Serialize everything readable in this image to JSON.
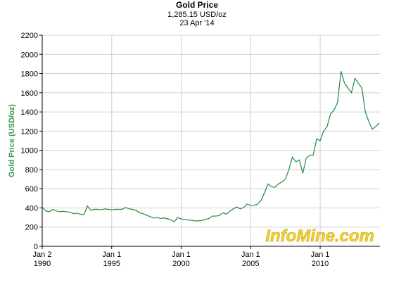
{
  "chart_data": {
    "type": "line",
    "title": "Gold Price",
    "subtitle": "1,285.15 USD/oz",
    "date": "23 Apr '14",
    "y_label": "Gold Price (USD/oz)",
    "watermark": "InfoMine.com",
    "x": [
      1990,
      1990.25,
      1990.5,
      1990.75,
      1991,
      1991.25,
      1991.5,
      1991.75,
      1992,
      1992.25,
      1992.5,
      1992.75,
      1993,
      1993.25,
      1993.5,
      1993.75,
      1994,
      1994.25,
      1994.5,
      1994.75,
      1995,
      1995.25,
      1995.5,
      1995.75,
      1996,
      1996.25,
      1996.5,
      1996.75,
      1997,
      1997.25,
      1997.5,
      1997.75,
      1998,
      1998.25,
      1998.5,
      1998.75,
      1999,
      1999.25,
      1999.5,
      1999.75,
      2000,
      2000.25,
      2000.5,
      2000.75,
      2001,
      2001.25,
      2001.5,
      2001.75,
      2002,
      2002.25,
      2002.5,
      2002.75,
      2003,
      2003.25,
      2003.5,
      2003.75,
      2004,
      2004.25,
      2004.5,
      2004.75,
      2005,
      2005.25,
      2005.5,
      2005.75,
      2006,
      2006.25,
      2006.5,
      2006.75,
      2007,
      2007.25,
      2007.5,
      2007.75,
      2008,
      2008.25,
      2008.5,
      2008.75,
      2009,
      2009.25,
      2009.5,
      2009.75,
      2010,
      2010.25,
      2010.5,
      2010.75,
      2011,
      2011.25,
      2011.5,
      2011.75,
      2012,
      2012.25,
      2012.5,
      2012.75,
      2013,
      2013.25,
      2013.5,
      2013.75,
      2014,
      2014.25
    ],
    "series": [
      {
        "color": "#1e8c3c",
        "values": [
          410,
          370,
          360,
          385,
          370,
          360,
          365,
          360,
          355,
          340,
          345,
          335,
          330,
          420,
          375,
          385,
          385,
          380,
          390,
          385,
          380,
          385,
          385,
          385,
          405,
          390,
          385,
          375,
          350,
          340,
          325,
          310,
          295,
          300,
          290,
          295,
          288,
          275,
          255,
          300,
          285,
          280,
          275,
          270,
          265,
          265,
          270,
          280,
          290,
          315,
          315,
          320,
          350,
          335,
          365,
          390,
          410,
          390,
          405,
          440,
          425,
          425,
          440,
          480,
          560,
          650,
          620,
          615,
          650,
          670,
          700,
          800,
          930,
          880,
          900,
          760,
          920,
          950,
          950,
          1120,
          1100,
          1200,
          1250,
          1380,
          1420,
          1500,
          1825,
          1700,
          1650,
          1600,
          1750,
          1700,
          1650,
          1400,
          1300,
          1220,
          1250,
          1285
        ]
      }
    ],
    "xlim": [
      1990,
      2014.3
    ],
    "xticks": [
      {
        "value": 1990,
        "label": "Jan 2",
        "year": "1990"
      },
      {
        "value": 1995,
        "label": "Jan 1",
        "year": "1995"
      },
      {
        "value": 2000,
        "label": "Jan 1",
        "year": "2000"
      },
      {
        "value": 2005,
        "label": "Jan 1",
        "year": "2005"
      },
      {
        "value": 2010,
        "label": "Jan 1",
        "year": "2010"
      }
    ],
    "ylim": [
      0,
      2200
    ],
    "yticks": [
      0,
      200,
      400,
      600,
      800,
      1000,
      1200,
      1400,
      1600,
      1800,
      2000,
      2200
    ],
    "grid": true
  }
}
